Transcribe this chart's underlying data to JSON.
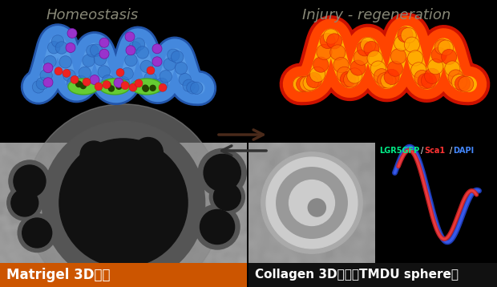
{
  "bg_color": "#000000",
  "title_homeostasis": "Homeostasis",
  "title_injury": "Injury - regeneration",
  "title_color": "#888877",
  "label_matrigel": "Matrigel 3D培養",
  "label_collagen": "Collagen 3D培養（TMDU sphere）",
  "label_lgr5": "LGR5GFP",
  "label_sca1": "Sca1",
  "label_dapi": "DAPI",
  "lgr5_color": "#00ee88",
  "sca1_color": "#ff3333",
  "dapi_color": "#4488ff",
  "matrigel_banner_color": "#cc5500",
  "arrow_right_color": "#4a2a1a",
  "arrow_left_color": "#333333",
  "figsize": [
    6.2,
    3.58
  ],
  "dpi": 100
}
